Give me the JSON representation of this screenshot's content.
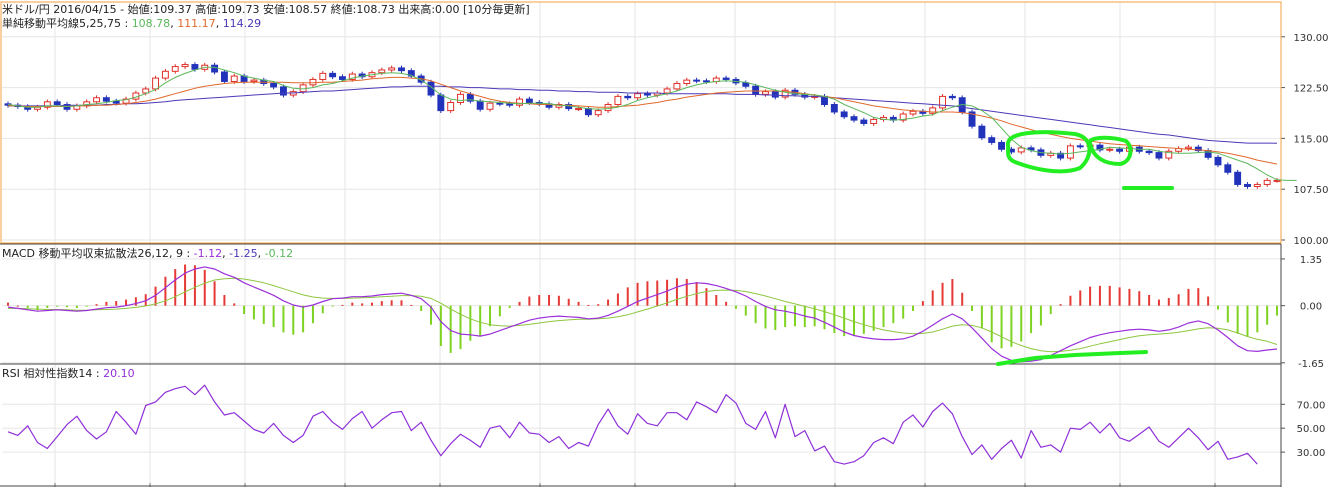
{
  "header": {
    "line1": "米ドル/円 2016/04/15 - 始値:109.37 高値:109.73 安値:108.57 終値:108.73 出来高:0.00 [10分毎更新]",
    "ma_label": "単純移動平均線",
    "ma_periods": "5,25,75 : ",
    "ma_val1": "108.78",
    "ma_val2": "111.17",
    "ma_val3": "114.29"
  },
  "macd_header": {
    "label": "MACD 移動平均収束拡散法",
    "params": "26,12, 9 : ",
    "val1": "-1.12",
    "val2": "-1.25",
    "val3": "-0.12"
  },
  "rsi_header": {
    "label": "RSI 相対性指数",
    "period": "14 : ",
    "value": "20.10"
  },
  "colors": {
    "panel_border": "#f5a23c",
    "up_candle": "#e0302a",
    "down_candle": "#2233bb",
    "ma5": "#5cb85c",
    "ma25": "#e0692c",
    "ma75": "#4b39b8",
    "macd_line": "#9b30d9",
    "signal_line": "#8dc63f",
    "hist_pos": "#e53935",
    "hist_neg": "#7ed321",
    "rsi_line": "#8e30d9",
    "highlight": "#22ee22"
  },
  "chart_data": [
    {
      "type": "candlestick",
      "id": "price",
      "ylim": [
        100.0,
        131.0
      ],
      "yticks": [
        "130.00",
        "122.50",
        "115.00",
        "107.50",
        "100.00"
      ],
      "ytick_values": [
        130.0,
        122.5,
        115.0,
        107.5,
        100.0
      ],
      "close": [
        119.9,
        119.7,
        119.3,
        119.6,
        120.4,
        120.0,
        119.3,
        119.8,
        120.4,
        121.0,
        120.5,
        120.2,
        120.8,
        121.7,
        122.3,
        123.9,
        124.9,
        125.6,
        125.9,
        125.2,
        125.8,
        124.8,
        123.4,
        124.2,
        123.4,
        123.6,
        123.1,
        122.6,
        121.4,
        121.9,
        122.9,
        123.7,
        124.6,
        124.1,
        123.7,
        124.5,
        124.1,
        124.7,
        125.1,
        125.4,
        125.0,
        124.2,
        123.3,
        121.4,
        119.1,
        120.3,
        121.5,
        120.5,
        119.3,
        120.2,
        120.1,
        119.9,
        120.8,
        120.3,
        120.1,
        119.6,
        120.0,
        119.4,
        119.4,
        118.5,
        119.1,
        120.0,
        121.2,
        121.0,
        121.6,
        121.4,
        121.7,
        122.3,
        123.1,
        123.6,
        123.5,
        123.4,
        123.9,
        123.7,
        123.2,
        122.7,
        121.5,
        121.9,
        121.1,
        122.1,
        121.5,
        121.1,
        121.2,
        120.0,
        118.9,
        118.2,
        117.7,
        117.2,
        117.8,
        118.1,
        117.7,
        118.6,
        119.0,
        118.7,
        119.5,
        121.2,
        121.0,
        118.9,
        116.8,
        115.1,
        114.4,
        113.4,
        113.0,
        113.6,
        113.3,
        112.5,
        112.8,
        112.1,
        113.9,
        113.8,
        114.0,
        113.3,
        113.4,
        113.1,
        113.7,
        113.1,
        112.9,
        112.1,
        113.1,
        113.5,
        113.7,
        113.2,
        112.2,
        111.1,
        110.0,
        108.2,
        107.9,
        108.2,
        108.8,
        108.8
      ],
      "ma5": [
        120.0,
        119.8,
        119.6,
        119.6,
        119.8,
        119.8,
        119.7,
        119.8,
        120.0,
        120.1,
        120.3,
        120.6,
        120.7,
        121.1,
        121.6,
        122.2,
        123.2,
        124.0,
        124.6,
        125.1,
        125.5,
        125.5,
        125.1,
        124.7,
        124.2,
        123.9,
        123.6,
        123.4,
        122.8,
        122.4,
        122.3,
        122.5,
        122.9,
        123.1,
        123.5,
        123.9,
        124.2,
        124.4,
        124.6,
        124.7,
        124.6,
        124.3,
        123.6,
        122.6,
        121.4,
        120.8,
        120.6,
        120.7,
        120.5,
        120.4,
        120.3,
        120.2,
        120.1,
        120.2,
        120.2,
        120.1,
        119.9,
        119.8,
        119.6,
        119.4,
        119.3,
        119.4,
        119.6,
        120.0,
        120.6,
        121.0,
        121.3,
        121.6,
        122.0,
        122.5,
        122.9,
        123.2,
        123.4,
        123.5,
        123.4,
        123.3,
        122.9,
        122.5,
        122.1,
        121.8,
        121.6,
        121.5,
        121.4,
        121.2,
        120.8,
        120.0,
        119.4,
        118.8,
        118.1,
        117.8,
        117.7,
        117.8,
        118.0,
        118.3,
        118.5,
        119.1,
        119.6,
        120.0,
        119.8,
        119.1,
        118.1,
        116.5,
        114.9,
        113.7,
        113.2,
        112.9,
        112.8,
        112.7,
        112.8,
        113.0,
        113.2,
        113.4,
        113.7,
        113.6,
        113.5,
        113.4,
        113.4,
        113.1,
        112.9,
        112.8,
        112.8,
        112.9,
        113.0,
        112.8,
        112.3,
        111.8,
        111.3,
        110.5,
        109.6,
        108.9,
        108.8,
        108.8
      ],
      "ma25": [
        119.8,
        119.8,
        119.7,
        119.7,
        119.7,
        119.7,
        119.7,
        119.8,
        119.8,
        119.9,
        119.9,
        120.0,
        120.1,
        120.3,
        120.5,
        120.8,
        121.2,
        121.6,
        122.0,
        122.4,
        122.7,
        122.9,
        123.1,
        123.2,
        123.3,
        123.3,
        123.3,
        123.3,
        123.3,
        123.2,
        123.2,
        123.2,
        123.3,
        123.3,
        123.4,
        123.5,
        123.6,
        123.8,
        123.9,
        124.0,
        124.0,
        123.9,
        123.8,
        123.5,
        123.0,
        122.5,
        122.0,
        121.6,
        121.2,
        120.8,
        120.5,
        120.3,
        120.2,
        120.1,
        120.0,
        120.0,
        119.9,
        119.9,
        119.8,
        119.7,
        119.6,
        119.6,
        119.7,
        119.8,
        119.9,
        120.1,
        120.3,
        120.6,
        120.8,
        121.1,
        121.3,
        121.5,
        121.7,
        121.8,
        121.9,
        122.0,
        122.0,
        122.0,
        122.0,
        121.9,
        121.8,
        121.6,
        121.4,
        121.2,
        121.0,
        120.7,
        120.4,
        120.1,
        119.8,
        119.6,
        119.4,
        119.2,
        119.1,
        119.0,
        118.9,
        118.9,
        118.9,
        118.8,
        118.6,
        118.3,
        118.0,
        117.6,
        117.1,
        116.7,
        116.3,
        115.9,
        115.6,
        115.3,
        115.0,
        114.8,
        114.6,
        114.4,
        114.2,
        114.1,
        114.0,
        113.9,
        113.8,
        113.7,
        113.6,
        113.5,
        113.4,
        113.3,
        113.2,
        113.0,
        112.8,
        112.5,
        112.2,
        111.8,
        111.5,
        111.2
      ],
      "ma75": [
        119.8,
        119.8,
        119.8,
        119.8,
        119.8,
        119.8,
        119.9,
        119.9,
        119.9,
        119.9,
        120.0,
        120.0,
        120.1,
        120.1,
        120.2,
        120.3,
        120.4,
        120.6,
        120.7,
        120.8,
        120.9,
        121.0,
        121.1,
        121.2,
        121.3,
        121.4,
        121.5,
        121.6,
        121.7,
        121.7,
        121.8,
        121.9,
        122.0,
        122.0,
        122.1,
        122.2,
        122.3,
        122.4,
        122.5,
        122.6,
        122.6,
        122.7,
        122.7,
        122.7,
        122.7,
        122.6,
        122.6,
        122.5,
        122.5,
        122.4,
        122.3,
        122.3,
        122.2,
        122.2,
        122.1,
        122.1,
        122.0,
        122.0,
        121.9,
        121.9,
        121.8,
        121.8,
        121.8,
        121.7,
        121.7,
        121.7,
        121.7,
        121.6,
        121.6,
        121.6,
        121.6,
        121.6,
        121.6,
        121.6,
        121.5,
        121.5,
        121.5,
        121.4,
        121.4,
        121.3,
        121.3,
        121.2,
        121.2,
        121.1,
        121.0,
        120.9,
        120.8,
        120.7,
        120.6,
        120.5,
        120.4,
        120.3,
        120.2,
        120.1,
        120.0,
        119.9,
        119.8,
        119.6,
        119.4,
        119.2,
        119.0,
        118.8,
        118.6,
        118.4,
        118.2,
        118.0,
        117.8,
        117.6,
        117.4,
        117.2,
        117.0,
        116.8,
        116.6,
        116.4,
        116.2,
        116.0,
        115.8,
        115.6,
        115.5,
        115.3,
        115.1,
        114.9,
        114.7,
        114.6,
        114.5,
        114.4,
        114.3,
        114.3,
        114.3,
        114.29
      ]
    },
    {
      "type": "line_bar",
      "id": "macd",
      "ylim": [
        -1.8,
        1.55
      ],
      "yticks": [
        "1.35",
        "0.00",
        "-1.65"
      ],
      "ytick_values": [
        1.35,
        0.0,
        -1.65
      ],
      "macd": [
        -0.04,
        -0.08,
        -0.12,
        -0.16,
        -0.14,
        -0.12,
        -0.14,
        -0.16,
        -0.14,
        -0.1,
        -0.06,
        -0.04,
        0.0,
        0.06,
        0.14,
        0.3,
        0.52,
        0.74,
        0.94,
        1.06,
        1.12,
        1.06,
        0.92,
        0.82,
        0.66,
        0.54,
        0.42,
        0.3,
        0.14,
        0.02,
        -0.04,
        0.02,
        0.12,
        0.2,
        0.22,
        0.26,
        0.26,
        0.28,
        0.32,
        0.34,
        0.36,
        0.3,
        0.2,
        -0.04,
        -0.46,
        -0.72,
        -0.82,
        -0.84,
        -0.88,
        -0.82,
        -0.72,
        -0.62,
        -0.52,
        -0.42,
        -0.36,
        -0.32,
        -0.3,
        -0.32,
        -0.34,
        -0.38,
        -0.36,
        -0.28,
        -0.16,
        -0.02,
        0.12,
        0.22,
        0.32,
        0.42,
        0.54,
        0.62,
        0.66,
        0.64,
        0.58,
        0.5,
        0.4,
        0.28,
        0.12,
        -0.02,
        -0.12,
        -0.16,
        -0.22,
        -0.3,
        -0.36,
        -0.48,
        -0.62,
        -0.76,
        -0.86,
        -0.92,
        -0.96,
        -0.98,
        -0.98,
        -0.96,
        -0.88,
        -0.74,
        -0.56,
        -0.38,
        -0.24,
        -0.38,
        -0.64,
        -0.94,
        -1.24,
        -1.46,
        -1.58,
        -1.62,
        -1.6,
        -1.56,
        -1.44,
        -1.3,
        -1.16,
        -1.04,
        -0.92,
        -0.84,
        -0.78,
        -0.74,
        -0.7,
        -0.68,
        -0.7,
        -0.74,
        -0.7,
        -0.62,
        -0.5,
        -0.44,
        -0.52,
        -0.7,
        -0.92,
        -1.16,
        -1.3,
        -1.32,
        -1.28,
        -1.25
      ],
      "signal": [
        -0.08,
        -0.08,
        -0.09,
        -0.1,
        -0.11,
        -0.11,
        -0.12,
        -0.13,
        -0.13,
        -0.12,
        -0.11,
        -0.1,
        -0.08,
        -0.05,
        -0.01,
        0.05,
        0.14,
        0.26,
        0.4,
        0.53,
        0.65,
        0.74,
        0.78,
        0.79,
        0.77,
        0.72,
        0.66,
        0.58,
        0.49,
        0.4,
        0.31,
        0.25,
        0.22,
        0.21,
        0.21,
        0.22,
        0.23,
        0.24,
        0.26,
        0.27,
        0.29,
        0.29,
        0.27,
        0.21,
        0.07,
        -0.1,
        -0.25,
        -0.38,
        -0.48,
        -0.55,
        -0.58,
        -0.59,
        -0.57,
        -0.54,
        -0.5,
        -0.46,
        -0.43,
        -0.41,
        -0.39,
        -0.39,
        -0.38,
        -0.36,
        -0.32,
        -0.26,
        -0.18,
        -0.1,
        -0.01,
        0.08,
        0.18,
        0.27,
        0.35,
        0.41,
        0.44,
        0.45,
        0.44,
        0.41,
        0.35,
        0.28,
        0.2,
        0.12,
        0.05,
        -0.02,
        -0.09,
        -0.17,
        -0.26,
        -0.36,
        -0.46,
        -0.55,
        -0.63,
        -0.7,
        -0.75,
        -0.79,
        -0.81,
        -0.8,
        -0.76,
        -0.68,
        -0.59,
        -0.55,
        -0.57,
        -0.64,
        -0.76,
        -0.9,
        -1.04,
        -1.15,
        -1.24,
        -1.3,
        -1.33,
        -1.32,
        -1.29,
        -1.24,
        -1.17,
        -1.1,
        -1.04,
        -0.98,
        -0.92,
        -0.87,
        -0.84,
        -0.82,
        -0.8,
        -0.77,
        -0.72,
        -0.67,
        -0.64,
        -0.65,
        -0.7,
        -0.79,
        -0.89,
        -0.97,
        -1.03,
        -1.12
      ]
    },
    {
      "type": "line",
      "id": "rsi",
      "ylim": [
        5,
        97
      ],
      "yticks": [
        "70.00",
        "50.00",
        "30.00"
      ],
      "ytick_values": [
        70,
        50,
        30
      ],
      "values": [
        47,
        44,
        52,
        38,
        33,
        43,
        53,
        60,
        48,
        41,
        47,
        64,
        55,
        45,
        69,
        72,
        80,
        83,
        85,
        78,
        86,
        72,
        61,
        63,
        56,
        49,
        46,
        54,
        44,
        38,
        44,
        60,
        64,
        55,
        49,
        58,
        64,
        50,
        57,
        63,
        64,
        48,
        55,
        40,
        27,
        37,
        45,
        40,
        34,
        50,
        52,
        42,
        55,
        46,
        45,
        38,
        43,
        33,
        38,
        35,
        53,
        66,
        52,
        45,
        62,
        54,
        52,
        63,
        63,
        57,
        72,
        68,
        63,
        78,
        71,
        54,
        49,
        64,
        42,
        70,
        43,
        48,
        31,
        35,
        22,
        20,
        22,
        27,
        38,
        42,
        37,
        55,
        61,
        51,
        64,
        71,
        62,
        43,
        28,
        36,
        24,
        33,
        40,
        25,
        48,
        34,
        36,
        30,
        50,
        49,
        55,
        46,
        54,
        42,
        39,
        45,
        51,
        39,
        34,
        42,
        50,
        42,
        32,
        39,
        24,
        26,
        29,
        20
      ]
    }
  ]
}
